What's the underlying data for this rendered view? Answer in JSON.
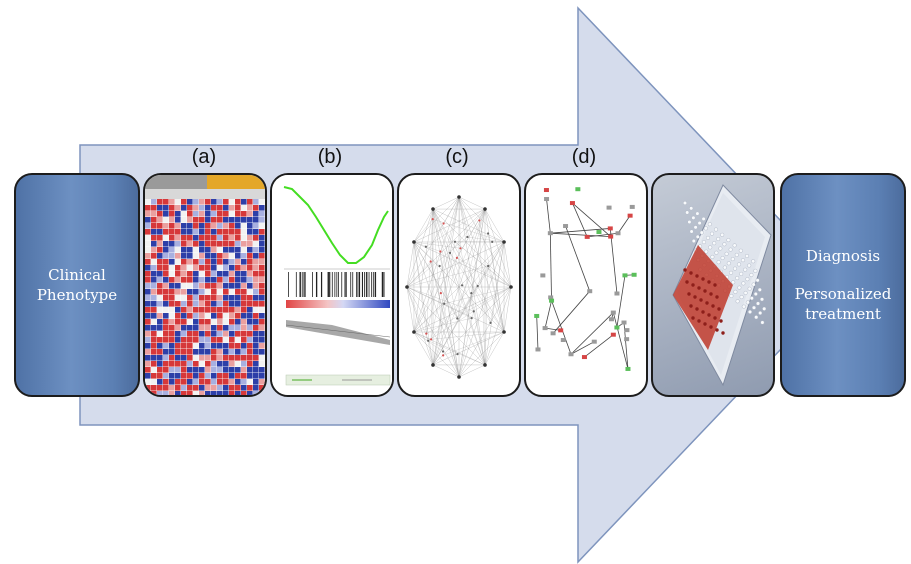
{
  "step_labels": [
    "(a)",
    "(b)",
    "(c)",
    "(d)"
  ],
  "clinical_box": {
    "line1": "Clinical",
    "line2": "Phenotype"
  },
  "outcome_box": {
    "diagnosis": "Diagnosis",
    "line1": "Personalized",
    "line2": "treatment"
  },
  "colors": {
    "arrow_fill": "#d5dcec",
    "arrow_stroke": "#7e94bd",
    "box_blue": "#5b7fb3",
    "heatmap_red": "#d6383a",
    "heatmap_blue": "#2d3fa8",
    "enrichment_line": "#44dd22"
  },
  "icons": [
    "heatmap-image",
    "enrichment-plot-image",
    "network-star-image",
    "network-graph-image",
    "microplate-image"
  ]
}
